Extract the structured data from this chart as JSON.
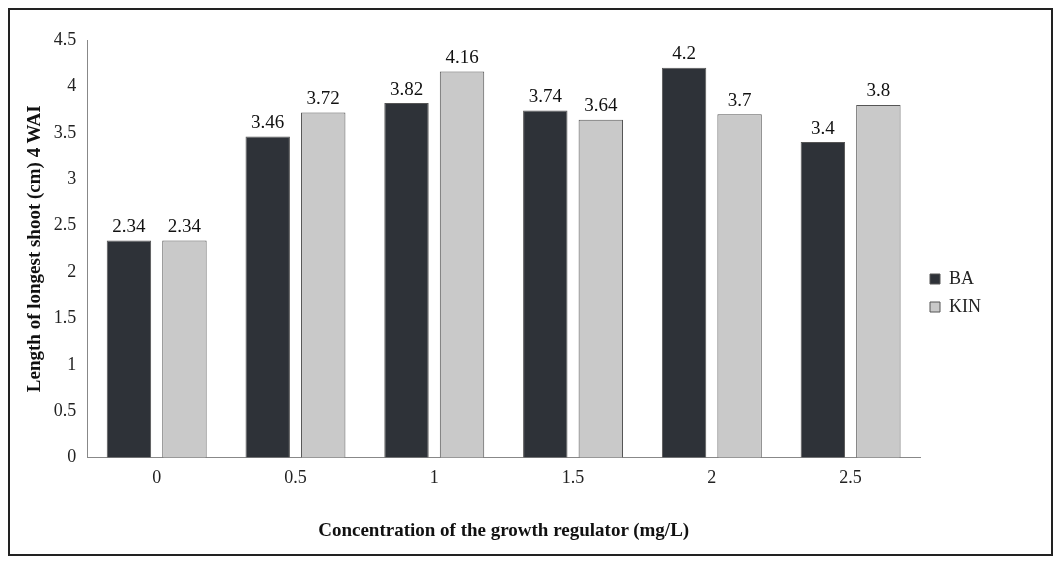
{
  "chart_data": {
    "type": "bar",
    "xlabel": "Concentration of the growth regulator (mg/L)",
    "ylabel": "Length of longest shoot (cm) 4 WAI",
    "categories": [
      "0",
      "0.5",
      "1",
      "1.5",
      "2",
      "2.5"
    ],
    "series": [
      {
        "name": "BA",
        "color": "#2e3238",
        "values": [
          2.34,
          3.46,
          3.82,
          3.74,
          4.2,
          3.4
        ]
      },
      {
        "name": "KIN",
        "color": "#c9c9c9",
        "values": [
          2.34,
          3.72,
          4.16,
          3.64,
          3.7,
          3.8
        ]
      }
    ],
    "ylim": [
      0,
      4.5
    ],
    "yticks": [
      0,
      0.5,
      1,
      1.5,
      2,
      2.5,
      3,
      3.5,
      4,
      4.5
    ],
    "grid": false,
    "legend": "right",
    "data_labels": true
  }
}
